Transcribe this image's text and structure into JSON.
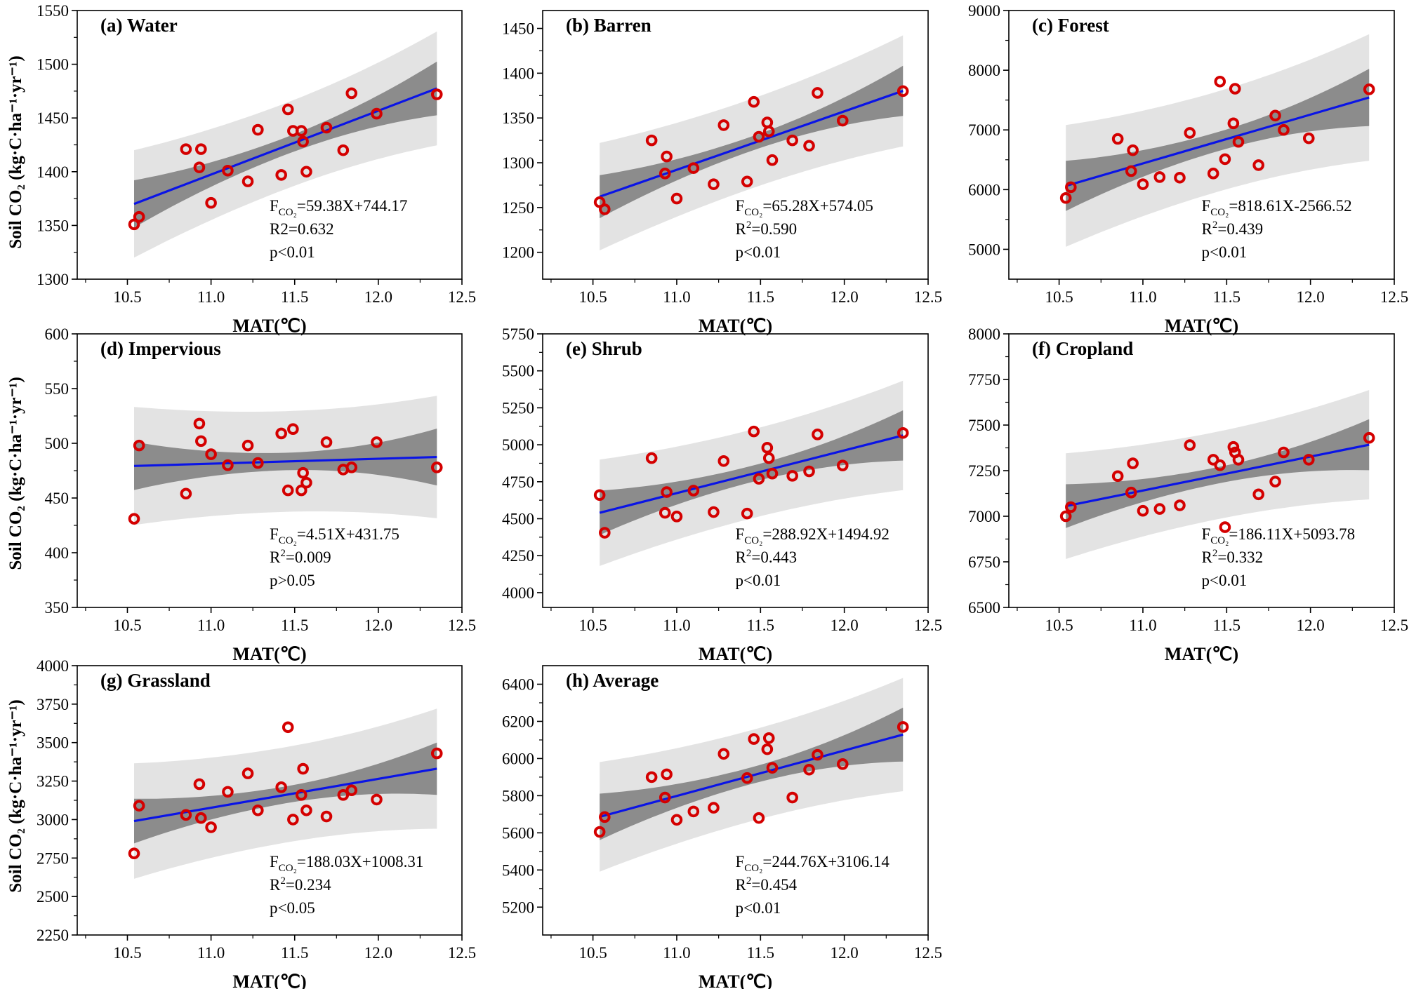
{
  "figure": {
    "y_axis_label": "Soil CO₂ (kg·C·ha⁻¹·yr⁻¹)",
    "colors": {
      "points": "#d40000",
      "fit_line": "#0a14e6",
      "conf_band": "#8c8c8c",
      "pred_band": "#e3e3e3"
    }
  },
  "chart_data": [
    {
      "id": "a",
      "type": "scatter",
      "title": "(a) Water",
      "xlabel": "MAT(℃)",
      "xlim": [
        10.2,
        12.5
      ],
      "xticks": [
        10.5,
        11.0,
        11.5,
        12.0,
        12.5
      ],
      "xtick_labels": [
        "10.5",
        "11.0",
        "11.5",
        "12.0",
        "12.5"
      ],
      "ylim": [
        1300,
        1550
      ],
      "yticks": [
        1300,
        1350,
        1400,
        1450,
        1500,
        1550
      ],
      "x": [
        10.54,
        10.57,
        10.85,
        10.93,
        10.94,
        11.0,
        11.1,
        11.22,
        11.28,
        11.42,
        11.46,
        11.49,
        11.54,
        11.55,
        11.57,
        11.69,
        11.79,
        11.84,
        11.99,
        12.35
      ],
      "y": [
        1351,
        1358,
        1421,
        1404,
        1421,
        1371,
        1401,
        1391,
        1439,
        1397,
        1458,
        1438,
        1438,
        1428,
        1400,
        1441,
        1420,
        1473,
        1454,
        1472
      ],
      "fit": {
        "slope": 59.38,
        "intercept": 744.17,
        "x_range": [
          10.54,
          12.35
        ],
        "conf_half": [
          22,
          8,
          25
        ],
        "pred_half": [
          50,
          40,
          53
        ]
      },
      "equation": {
        "sym": "F",
        "sub": "CO₂",
        "rhs": "=59.38X+744.17"
      },
      "r2": {
        "label": "R2",
        "sup": "",
        "value": "=0.632"
      },
      "p_text": "p<0.01"
    },
    {
      "id": "b",
      "type": "scatter",
      "title": "(b) Barren",
      "xlabel": "MAT(℃)",
      "xlim": [
        10.2,
        12.5
      ],
      "xticks": [
        10.5,
        11.0,
        11.5,
        12.0,
        12.5
      ],
      "xtick_labels": [
        "10.5",
        "11.0",
        "11.5",
        "12.0",
        "12.5"
      ],
      "ylim": [
        1170,
        1470
      ],
      "yticks": [
        1200,
        1250,
        1300,
        1350,
        1400,
        1450
      ],
      "x": [
        10.54,
        10.57,
        10.85,
        10.93,
        10.94,
        11.0,
        11.1,
        11.22,
        11.28,
        11.42,
        11.46,
        11.49,
        11.54,
        11.55,
        11.57,
        11.69,
        11.79,
        11.84,
        11.99,
        12.35
      ],
      "y": [
        1256,
        1248,
        1325,
        1288,
        1307,
        1260,
        1294,
        1276,
        1342,
        1279,
        1368,
        1329,
        1345,
        1335,
        1303,
        1325,
        1319,
        1378,
        1347,
        1380
      ],
      "fit": {
        "slope": 65.28,
        "intercept": 574.05,
        "x_range": [
          10.54,
          12.35
        ],
        "conf_half": [
          24,
          8,
          28
        ],
        "pred_half": [
          60,
          50,
          62
        ]
      },
      "equation": {
        "sym": "F",
        "sub": "CO₂",
        "rhs": "=65.28X+574.05"
      },
      "r2": {
        "label": "R",
        "sup": "2",
        "value": "=0.590"
      },
      "p_text": "p<0.01"
    },
    {
      "id": "c",
      "type": "scatter",
      "title": "(c) Forest",
      "xlabel": "MAT(℃)",
      "xlim": [
        10.2,
        12.5
      ],
      "xticks": [
        10.5,
        11.0,
        11.5,
        12.0,
        12.5
      ],
      "xtick_labels": [
        "10.5",
        "11.0",
        "11.5",
        "12.0",
        "12.5"
      ],
      "ylim": [
        4500,
        9000
      ],
      "yticks": [
        5000,
        6000,
        7000,
        8000,
        9000
      ],
      "x": [
        10.54,
        10.57,
        10.85,
        10.93,
        10.94,
        11.0,
        11.1,
        11.22,
        11.28,
        11.42,
        11.46,
        11.49,
        11.54,
        11.55,
        11.57,
        11.69,
        11.79,
        11.84,
        11.99,
        12.35
      ],
      "y": [
        5860,
        6040,
        6850,
        6310,
        6660,
        6090,
        6210,
        6200,
        6950,
        6270,
        7810,
        6510,
        7110,
        7690,
        6800,
        6410,
        7240,
        7000,
        6860,
        7680
      ],
      "fit": {
        "slope": 818.61,
        "intercept": -2566.52,
        "x_range": [
          10.54,
          12.35
        ],
        "conf_half": [
          420,
          160,
          480
        ],
        "pred_half": [
          1020,
          840,
          1060
        ]
      },
      "equation": {
        "sym": "F",
        "sub": "CO₂",
        "rhs": "=818.61X-2566.52"
      },
      "r2": {
        "label": "R",
        "sup": "2",
        "value": "=0.439"
      },
      "p_text": "p<0.01"
    },
    {
      "id": "d",
      "type": "scatter",
      "title": "(d) Impervious",
      "xlabel": "MAT(℃)",
      "xlim": [
        10.2,
        12.5
      ],
      "xticks": [
        10.5,
        11.0,
        11.5,
        12.0,
        12.5
      ],
      "xtick_labels": [
        "10.5",
        "11.0",
        "11.5",
        "12.0",
        "12.5"
      ],
      "ylim": [
        350,
        600
      ],
      "yticks": [
        350,
        400,
        450,
        500,
        550,
        600
      ],
      "x": [
        10.54,
        10.57,
        10.85,
        10.93,
        10.94,
        11.0,
        11.1,
        11.22,
        11.28,
        11.42,
        11.46,
        11.49,
        11.54,
        11.55,
        11.57,
        11.69,
        11.79,
        11.84,
        11.99,
        12.35
      ],
      "y": [
        431,
        498,
        454,
        518,
        502,
        490,
        480,
        498,
        482,
        509,
        457,
        513,
        457,
        473,
        464,
        501,
        476,
        478,
        501,
        478
      ],
      "fit": {
        "slope": 4.51,
        "intercept": 431.75,
        "x_range": [
          10.54,
          12.35
        ],
        "conf_half": [
          22,
          8,
          26
        ],
        "pred_half": [
          54,
          46,
          56
        ]
      },
      "equation": {
        "sym": "F",
        "sub": "CO₂",
        "rhs": "=4.51X+431.75"
      },
      "r2": {
        "label": "R",
        "sup": "2",
        "value": "=0.009"
      },
      "p_text": "p>0.05"
    },
    {
      "id": "e",
      "type": "scatter",
      "title": "(e) Shrub",
      "xlabel": "MAT(℃)",
      "xlim": [
        10.2,
        12.5
      ],
      "xticks": [
        10.5,
        11.0,
        11.5,
        12.0,
        12.5
      ],
      "xtick_labels": [
        "10.5",
        "11.0",
        "11.5",
        "12.0",
        "12.5"
      ],
      "ylim": [
        3900,
        5750
      ],
      "yticks": [
        4000,
        4250,
        4500,
        4750,
        5000,
        5250,
        5500,
        5750
      ],
      "x": [
        10.54,
        10.57,
        10.85,
        10.93,
        10.94,
        11.0,
        11.1,
        11.22,
        11.28,
        11.42,
        11.46,
        11.49,
        11.54,
        11.55,
        11.57,
        11.69,
        11.79,
        11.84,
        11.99,
        12.35
      ],
      "y": [
        4660,
        4405,
        4910,
        4540,
        4680,
        4515,
        4690,
        4545,
        4890,
        4535,
        5090,
        4770,
        4980,
        4910,
        4805,
        4790,
        4820,
        5070,
        4860,
        5080
      ],
      "fit": {
        "slope": 288.92,
        "intercept": 1494.92,
        "x_range": [
          10.54,
          12.35
        ],
        "conf_half": [
          150,
          55,
          170
        ],
        "pred_half": [
          360,
          300,
          370
        ]
      },
      "equation": {
        "sym": "F",
        "sub": "CO₂",
        "rhs": "=288.92X+1494.92"
      },
      "r2": {
        "label": "R",
        "sup": "2",
        "value": "=0.443"
      },
      "p_text": "p<0.01"
    },
    {
      "id": "f",
      "type": "scatter",
      "title": "(f) Cropland",
      "xlabel": "MAT(℃)",
      "xlim": [
        10.2,
        12.5
      ],
      "xticks": [
        10.5,
        11.0,
        11.5,
        12.0,
        12.5
      ],
      "xtick_labels": [
        "10.5",
        "11.0",
        "11.5",
        "12.0",
        "12.5"
      ],
      "ylim": [
        6500,
        8000
      ],
      "yticks": [
        6500,
        6750,
        7000,
        7250,
        7500,
        7750,
        8000
      ],
      "x": [
        10.54,
        10.57,
        10.85,
        10.93,
        10.94,
        11.0,
        11.1,
        11.22,
        11.28,
        11.42,
        11.46,
        11.49,
        11.54,
        11.55,
        11.57,
        11.69,
        11.79,
        11.84,
        11.99,
        12.35
      ],
      "y": [
        7000,
        7050,
        7220,
        7130,
        7290,
        7030,
        7040,
        7060,
        7390,
        7310,
        7280,
        6940,
        7380,
        7350,
        7310,
        7120,
        7190,
        7350,
        7310,
        7430
      ],
      "fit": {
        "slope": 186.11,
        "intercept": 5093.78,
        "x_range": [
          10.54,
          12.35
        ],
        "conf_half": [
          120,
          45,
          140
        ],
        "pred_half": [
          290,
          240,
          300
        ]
      },
      "equation": {
        "sym": "F",
        "sub": "CO₂",
        "rhs": "=186.11X+5093.78"
      },
      "r2": {
        "label": "R",
        "sup": "2",
        "value": "=0.332"
      },
      "p_text": "p<0.01"
    },
    {
      "id": "g",
      "type": "scatter",
      "title": "(g) Grassland",
      "xlabel": "MAT(℃)",
      "xlim": [
        10.2,
        12.5
      ],
      "xticks": [
        10.5,
        11.0,
        11.5,
        12.0,
        12.5
      ],
      "xtick_labels": [
        "10.5",
        "11.0",
        "11.5",
        "12.0",
        "12.5"
      ],
      "ylim": [
        2250,
        4000
      ],
      "yticks": [
        2250,
        2500,
        2750,
        3000,
        3250,
        3500,
        3750,
        4000
      ],
      "x": [
        10.54,
        10.57,
        10.85,
        10.93,
        10.94,
        11.0,
        11.1,
        11.22,
        11.28,
        11.42,
        11.46,
        11.49,
        11.54,
        11.55,
        11.57,
        11.69,
        11.79,
        11.84,
        11.99,
        12.35
      ],
      "y": [
        2780,
        3090,
        3030,
        3230,
        3010,
        2950,
        3180,
        3300,
        3060,
        3210,
        3600,
        3000,
        3160,
        3330,
        3060,
        3020,
        3160,
        3190,
        3130,
        3430
      ],
      "fit": {
        "slope": 188.03,
        "intercept": 1008.31,
        "x_range": [
          10.54,
          12.35
        ],
        "conf_half": [
          145,
          55,
          170
        ],
        "pred_half": [
          375,
          310,
          390
        ]
      },
      "equation": {
        "sym": "F",
        "sub": "CO₂",
        "rhs": "=188.03X+1008.31"
      },
      "r2": {
        "label": "R",
        "sup": "2",
        "value": "=0.234"
      },
      "p_text": "p<0.05"
    },
    {
      "id": "h",
      "type": "scatter",
      "title": "(h) Average",
      "xlabel": "MAT(℃)",
      "xlim": [
        10.2,
        12.5
      ],
      "xticks": [
        10.5,
        11.0,
        11.5,
        12.0,
        12.5
      ],
      "xtick_labels": [
        "10.5",
        "11.0",
        "11.5",
        "12.0",
        "12.5"
      ],
      "ylim": [
        5050,
        6500
      ],
      "yticks": [
        5200,
        5400,
        5600,
        5800,
        6000,
        6200,
        6400
      ],
      "x": [
        10.54,
        10.57,
        10.85,
        10.93,
        10.94,
        11.0,
        11.1,
        11.22,
        11.28,
        11.42,
        11.46,
        11.49,
        11.54,
        11.55,
        11.57,
        11.69,
        11.79,
        11.84,
        11.99,
        12.35
      ],
      "y": [
        5605,
        5685,
        5900,
        5790,
        5915,
        5670,
        5715,
        5735,
        6025,
        5895,
        6105,
        5680,
        6050,
        6110,
        5950,
        5790,
        5940,
        6020,
        5970,
        6170
      ],
      "fit": {
        "slope": 244.76,
        "intercept": 3106.14,
        "x_range": [
          10.54,
          12.35
        ],
        "conf_half": [
          125,
          45,
          145
        ],
        "pred_half": [
          295,
          245,
          305
        ]
      },
      "equation": {
        "sym": "F",
        "sub": "CO₂",
        "rhs": "=244.76X+3106.14"
      },
      "r2": {
        "label": "R",
        "sup": "2",
        "value": "=0.454"
      },
      "p_text": "p<0.01"
    }
  ]
}
